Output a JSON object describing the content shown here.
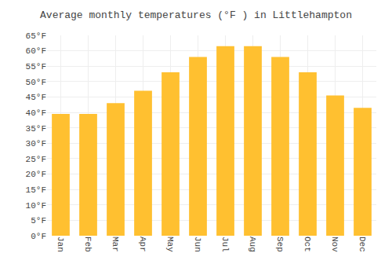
{
  "chart_data": {
    "type": "bar",
    "title": "Average monthly temperatures (°F ) in Littlehampton",
    "categories": [
      "Jan",
      "Feb",
      "Mar",
      "Apr",
      "May",
      "Jun",
      "Jul",
      "Aug",
      "Sep",
      "Oct",
      "Nov",
      "Dec"
    ],
    "values": [
      39.5,
      39.5,
      43,
      47,
      53,
      58,
      61.5,
      61.5,
      58,
      53,
      45.5,
      41.5
    ],
    "color": "#FFC030",
    "ylim": [
      0,
      65
    ],
    "yticks": [
      {
        "value": 0,
        "label": "0°F"
      },
      {
        "value": 5,
        "label": "5°F"
      },
      {
        "value": 10,
        "label": "10°F"
      },
      {
        "value": 15,
        "label": "15°F"
      },
      {
        "value": 20,
        "label": "20°F"
      },
      {
        "value": 25,
        "label": "25°F"
      },
      {
        "value": 30,
        "label": "30°F"
      },
      {
        "value": 35,
        "label": "35°F"
      },
      {
        "value": 40,
        "label": "40°F"
      },
      {
        "value": 45,
        "label": "45°F"
      },
      {
        "value": 50,
        "label": "50°F"
      },
      {
        "value": 55,
        "label": "55°F"
      },
      {
        "value": 60,
        "label": "60°F"
      },
      {
        "value": 65,
        "label": "65°F"
      }
    ],
    "grid": true
  }
}
